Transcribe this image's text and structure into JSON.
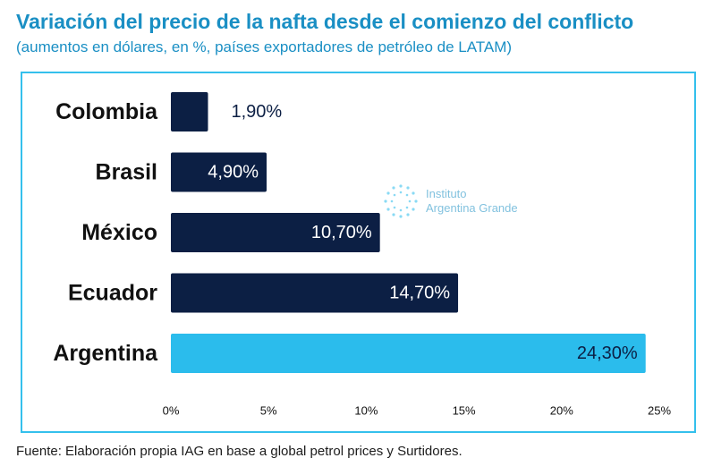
{
  "title": "Variación del precio de la nafta desde el comienzo del conflicto",
  "subtitle": "(aumentos en dólares, en %, países exportadores de petróleo de LATAM)",
  "source": "Fuente: Elaboración propia IAG en base a global petrol prices y Surtidores.",
  "watermark": {
    "line1": "Instituto",
    "line2": "Argentina Grande"
  },
  "colors": {
    "dark_bar": "#0c1f44",
    "highlight_bar": "#2bbcec",
    "accent": "#1a8fc4"
  },
  "chart_data": {
    "type": "bar",
    "orientation": "horizontal",
    "categories": [
      "Colombia",
      "Brasil",
      "México",
      "Ecuador",
      "Argentina"
    ],
    "values": [
      1.9,
      4.9,
      10.7,
      14.7,
      24.3
    ],
    "value_labels": [
      "1,90%",
      "4,90%",
      "10,70%",
      "14,70%",
      "24,30%"
    ],
    "bar_colors": [
      "#0c1f44",
      "#0c1f44",
      "#0c1f44",
      "#0c1f44",
      "#2bbcec"
    ],
    "xlim": [
      0,
      25
    ],
    "xticks": [
      0,
      5,
      10,
      15,
      20,
      25
    ],
    "xtick_labels": [
      "0%",
      "5%",
      "10%",
      "15%",
      "20%",
      "25%"
    ],
    "grid": false
  }
}
